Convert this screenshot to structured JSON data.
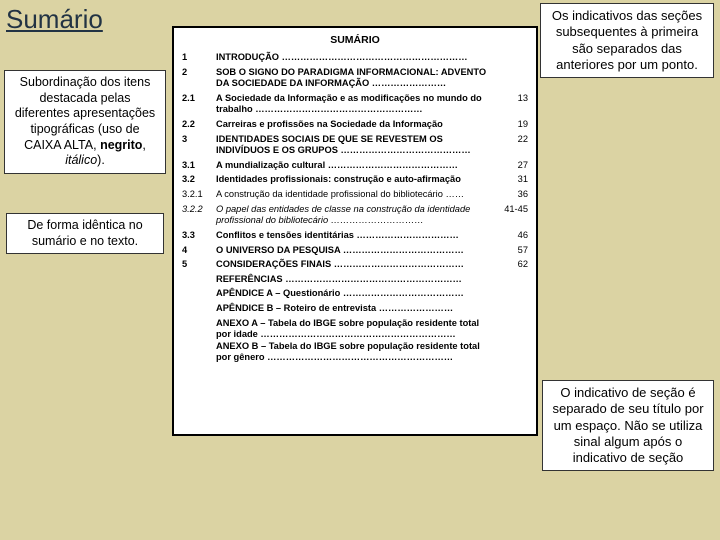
{
  "main_title": "Sumário",
  "callouts": {
    "left1": "Subordinação dos itens destacada pelas diferentes apresentações tipográficas (uso de CAIXA ALTA, <b>negrito</b>, <i>itálico</i>).",
    "left2": "De forma idêntica no sumário e no texto.",
    "right1": "Os indicativos das seções subsequentes à primeira são separados das anteriores por um ponto.",
    "right2": "O indicativo de seção é separado de seu título por um espaço. Não se utiliza sinal algum após o indicativo de seção"
  },
  "toc": {
    "title": "SUMÁRIO",
    "rows": [
      {
        "num": "1",
        "text": "INTRODUÇÃO ……………………………………………………",
        "page": "",
        "cls": "bold upper"
      },
      {
        "num": "2",
        "text": "SOB O SIGNO DO PARADIGMA INFORMACIONAL: advento da Sociedade da Informação ……………………",
        "page": "",
        "cls": "bold upper"
      },
      {
        "num": "2.1",
        "text": "A Sociedade da Informação e as modificações no mundo do trabalho ………………………………………………",
        "page": "13",
        "cls": "bold"
      },
      {
        "num": "2.2",
        "text": "Carreiras e profissões na Sociedade da Informação",
        "page": "19",
        "cls": "bold"
      },
      {
        "num": "3",
        "text": "IDENTIDADES SOCIAIS DE QUE SE REVESTEM OS INDIVÍDUOS E OS GRUPOS ……………………………………",
        "page": "22",
        "cls": "bold upper"
      },
      {
        "num": "3.1",
        "text": "A mundialização cultural ……………………………………",
        "page": "27",
        "cls": "bold"
      },
      {
        "num": "3.2",
        "text": "Identidades profissionais: construção e auto-afirmação",
        "page": "31",
        "cls": "bold"
      },
      {
        "num": "3.2.1",
        "text": "A construção da identidade profissional do bibliotecário ……",
        "page": "36",
        "cls": ""
      },
      {
        "num": "3.2.2",
        "text": "O papel das entidades de classe na construção da identidade profissional do bibliotecário …………………………",
        "page": "41-45",
        "cls": "ital"
      },
      {
        "num": "3.3",
        "text": "Conflitos e tensões identitárias ……………………………",
        "page": "46",
        "cls": "bold"
      },
      {
        "num": "4",
        "text": "O UNIVERSO DA PESQUISA …………………………………",
        "page": "57",
        "cls": "bold upper"
      },
      {
        "num": "5",
        "text": "CONSIDERAÇÕES FINAIS ……………………………………",
        "page": "62",
        "cls": "bold upper"
      },
      {
        "num": "",
        "text": "REFERÊNCIAS …………………………………………………",
        "page": "",
        "cls": "bold upper"
      },
      {
        "num": "",
        "text": "APÊNDICE A – Questionário …………………………………",
        "page": "",
        "cls": "bold"
      },
      {
        "num": "",
        "text": "APÊNDICE B – Roteiro de entrevista ……………………",
        "page": "",
        "cls": "bold"
      },
      {
        "num": "",
        "text": "ANEXO A – Tabela do IBGE sobre população residente total por idade ………………………………………………………<br>ANEXO B – Tabela do IBGE sobre população residente total por gênero ……………………………………………………",
        "page": "",
        "cls": "bold"
      }
    ]
  },
  "colors": {
    "background": "#dbd3a3",
    "text": "#000000",
    "title": "#223344",
    "box_bg": "#ffffff",
    "box_border": "#000000"
  }
}
